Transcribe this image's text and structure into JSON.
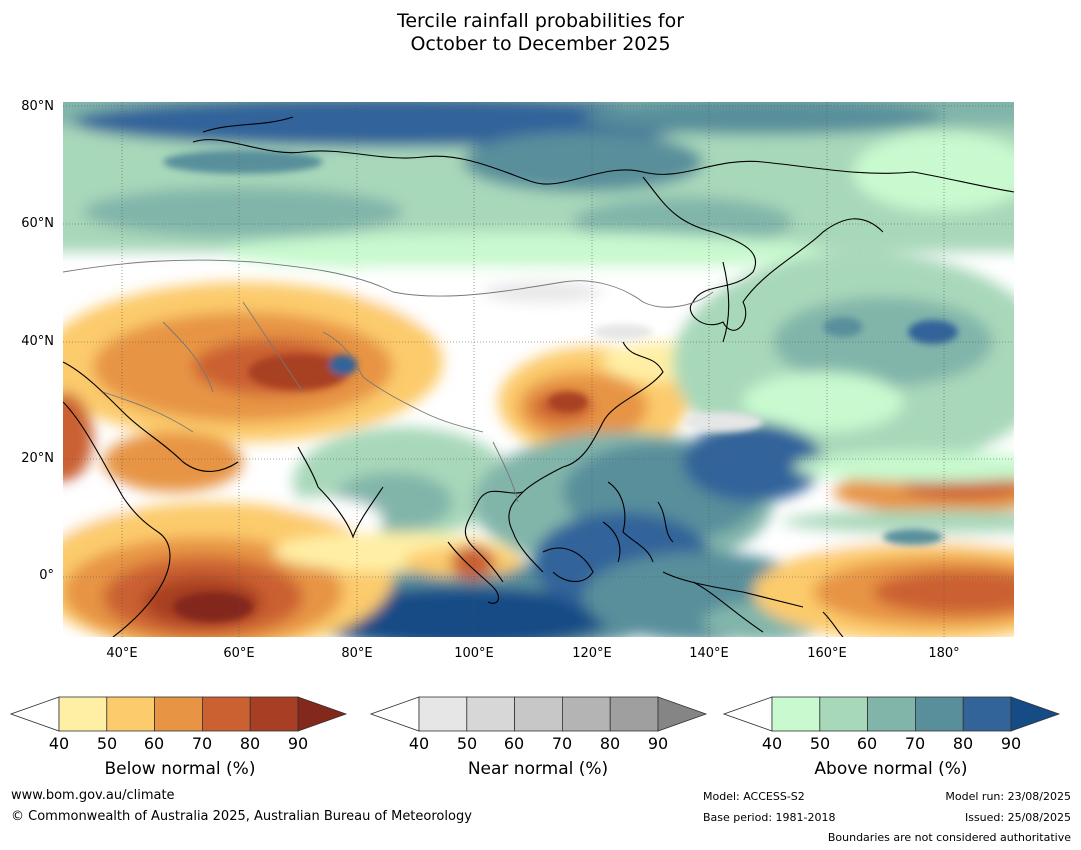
{
  "title": {
    "line1": "Tercile rainfall probabilities for",
    "line2": "October to December 2025"
  },
  "map": {
    "lat_labels": [
      "80°N",
      "60°N",
      "40°N",
      "20°N",
      "0°"
    ],
    "lon_labels": [
      "40°E",
      "60°E",
      "80°E",
      "100°E",
      "120°E",
      "140°E",
      "160°E",
      "180°"
    ],
    "extent": {
      "lon": [
        30,
        191
      ],
      "lat": [
        -10,
        81
      ]
    }
  },
  "colorbars": {
    "below": {
      "title": "Below normal (%)",
      "ticks": [
        "40",
        "50",
        "60",
        "70",
        "80",
        "90"
      ],
      "colors": [
        "#ffefa5",
        "#fccb6c",
        "#e79445",
        "#cb6130",
        "#a83f24",
        "#83281b"
      ]
    },
    "near": {
      "title": "Near normal (%)",
      "ticks": [
        "40",
        "50",
        "60",
        "70",
        "80",
        "90"
      ],
      "colors": [
        "#e6e6e6",
        "#d7d7d7",
        "#c7c7c7",
        "#b4b4b4",
        "#9f9f9f",
        "#858585"
      ]
    },
    "above": {
      "title": "Above normal (%)",
      "ticks": [
        "40",
        "50",
        "60",
        "70",
        "80",
        "90"
      ],
      "colors": [
        "#c8f9cf",
        "#a8d8ba",
        "#82b5aa",
        "#588f9b",
        "#32649a",
        "#154c86"
      ]
    }
  },
  "footer": {
    "website": "www.bom.gov.au/climate",
    "copyright": "© Commonwealth of Australia 2025, Australian Bureau of Meteorology",
    "model": "Model: ACCESS-S2",
    "base_period": "Base period: 1981-2018",
    "model_run": "Model run: 23/08/2025",
    "issued": "Issued: 25/08/2025",
    "disclaimer": "Boundaries are not considered authoritative"
  }
}
